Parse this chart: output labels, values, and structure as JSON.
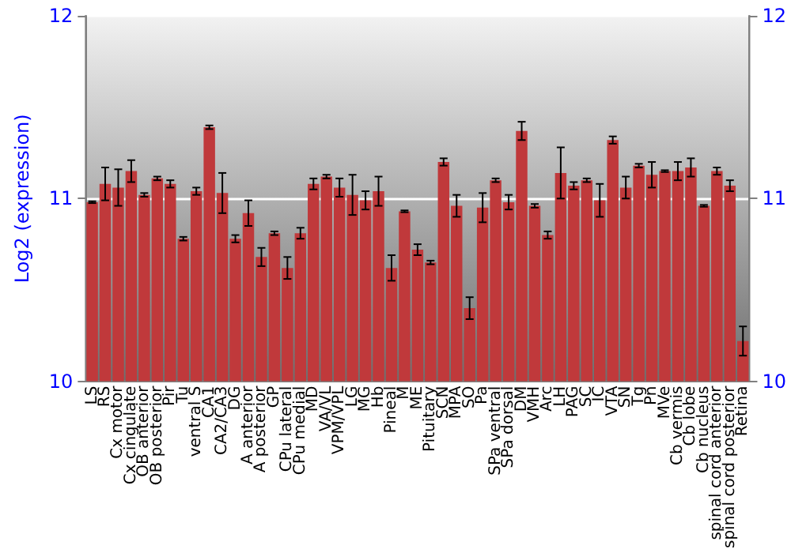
{
  "chart_data": {
    "type": "bar",
    "ylabel": "Log2 (expression)",
    "categories": [
      "LS",
      "RS",
      "Cx motor",
      "Cx cingulate",
      "OB anterior",
      "OB posterior",
      "Pir",
      "Tu",
      "ventral S",
      "CA1",
      "CA2/CA3",
      "DG",
      "A anterior",
      "A posterior",
      "GP",
      "CPu lateral",
      "CPu medial",
      "MD",
      "VA/VL",
      "VPM/VPL",
      "LG",
      "MG",
      "Hb",
      "Pineal",
      "M",
      "ME",
      "Pituitary",
      "SCN",
      "MPA",
      "SO",
      "Pa",
      "SPa ventral",
      "SPa dorsal",
      "DM",
      "VMH",
      "Arc",
      "LH",
      "PAG",
      "SC",
      "IC",
      "VTA",
      "SN",
      "Tg",
      "Pn",
      "MVe",
      "Cb vermis",
      "Cb lobe",
      "Cb nucleus",
      "spinal cord anterior",
      "spinal cord posterior",
      "Retina"
    ],
    "values": [
      10.98,
      11.08,
      11.06,
      11.15,
      11.02,
      11.11,
      11.08,
      10.78,
      11.04,
      11.39,
      11.03,
      10.78,
      10.92,
      10.68,
      10.81,
      10.62,
      10.81,
      11.08,
      11.12,
      11.06,
      11.02,
      10.99,
      11.04,
      10.62,
      10.93,
      10.72,
      10.65,
      11.2,
      10.96,
      10.4,
      10.95,
      11.1,
      10.98,
      11.37,
      10.96,
      10.8,
      11.14,
      11.07,
      11.1,
      10.99,
      11.32,
      11.06,
      11.18,
      11.13,
      11.15,
      11.15,
      11.17,
      10.96,
      11.15,
      11.07,
      10.22
    ],
    "errors": [
      0.005,
      0.09,
      0.1,
      0.06,
      0.01,
      0.01,
      0.02,
      0.01,
      0.02,
      0.01,
      0.11,
      0.02,
      0.07,
      0.05,
      0.01,
      0.06,
      0.03,
      0.03,
      0.01,
      0.05,
      0.11,
      0.05,
      0.08,
      0.07,
      0.005,
      0.03,
      0.01,
      0.02,
      0.06,
      0.06,
      0.08,
      0.01,
      0.04,
      0.05,
      0.01,
      0.02,
      0.14,
      0.02,
      0.01,
      0.09,
      0.02,
      0.06,
      0.01,
      0.07,
      0.005,
      0.05,
      0.05,
      0.005,
      0.02,
      0.03,
      0.08
    ],
    "color": "#c0393b",
    "ylim": [
      10,
      12
    ],
    "yticks": [
      10,
      11,
      12
    ],
    "y2lim": [
      10,
      12
    ],
    "y2ticks": [
      10,
      11,
      12
    ],
    "grid": "y"
  }
}
